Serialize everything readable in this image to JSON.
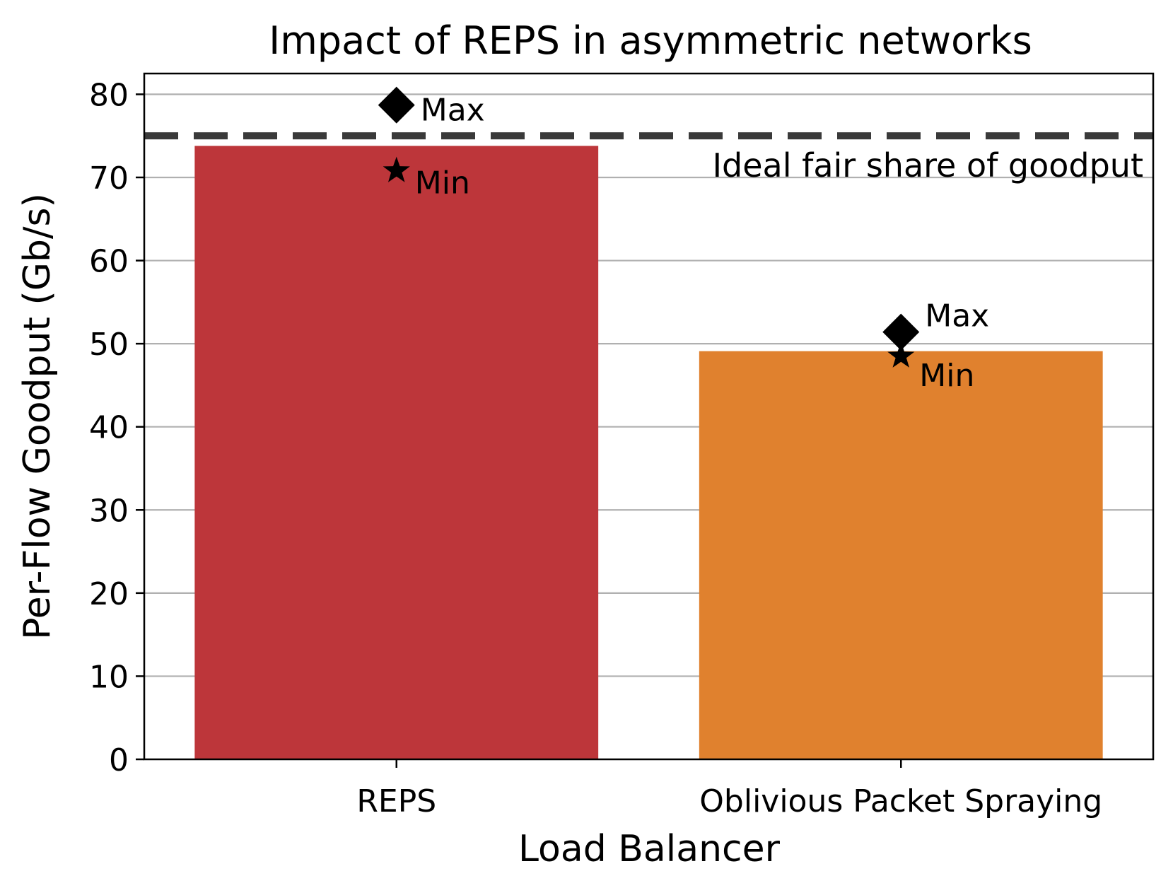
{
  "chart_data": {
    "type": "bar",
    "title": "Impact of REPS in asymmetric networks",
    "xlabel": "Load Balancer",
    "ylabel": "Per-Flow Goodput (Gb/s)",
    "ylim": [
      0,
      82.5
    ],
    "yticks": [
      0,
      10,
      20,
      30,
      40,
      50,
      60,
      70,
      80
    ],
    "grid": "horizontal",
    "categories": [
      "REPS",
      "Oblivious Packet Spraying"
    ],
    "values": [
      73.8,
      49.1
    ],
    "bar_colors": [
      "#bd363a",
      "#e0812e"
    ],
    "max_values": [
      78.7,
      51.4
    ],
    "min_values": [
      70.8,
      48.5
    ],
    "max_label": "Max",
    "min_label": "Min",
    "reference_line": {
      "value": 75.0,
      "label": "Ideal fair share of goodput",
      "color": "#3a3a3a"
    }
  }
}
